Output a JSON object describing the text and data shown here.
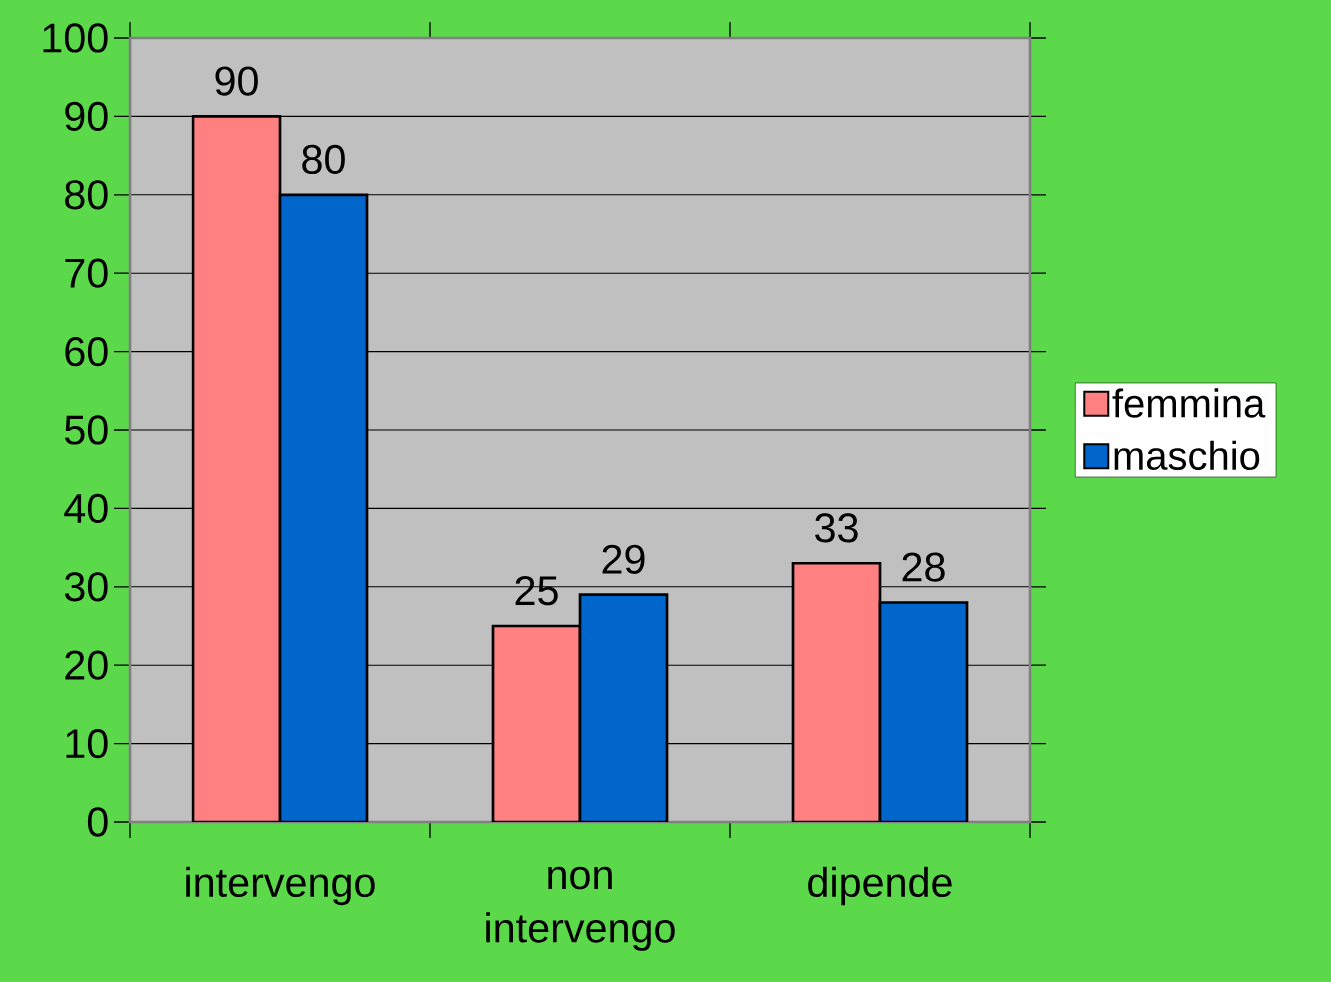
{
  "chart_data": {
    "type": "bar",
    "categories": [
      "intervengo",
      "non intervengo",
      "dipende"
    ],
    "series": [
      {
        "name": "femmina",
        "color": "#ff8080",
        "values": [
          90,
          25,
          33
        ]
      },
      {
        "name": "maschio",
        "color": "#0066cc",
        "values": [
          80,
          29,
          28
        ]
      }
    ],
    "ylim": [
      0,
      100
    ],
    "yticks": [
      0,
      10,
      20,
      30,
      40,
      50,
      60,
      70,
      80,
      90,
      100
    ],
    "grid": "y",
    "legend": "right",
    "data_labels": true
  }
}
